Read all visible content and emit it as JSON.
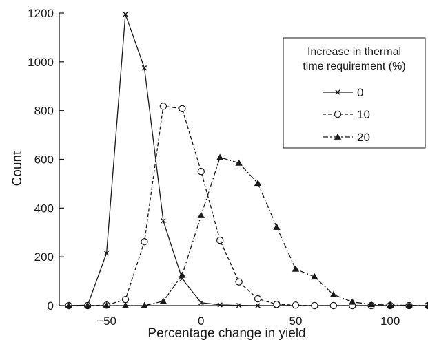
{
  "chart_data": {
    "type": "line",
    "title": "",
    "xlabel": "Percentage change in yield",
    "ylabel": "Count",
    "xlim": [
      -75,
      120
    ],
    "ylim": [
      0,
      1200
    ],
    "x_ticks": [
      -50,
      0,
      50,
      100
    ],
    "y_ticks": [
      0,
      200,
      400,
      600,
      800,
      1000,
      1200
    ],
    "x_tick_labels": [
      "−50",
      "0",
      "50",
      "100"
    ],
    "y_tick_labels": [
      "0",
      "200",
      "400",
      "600",
      "800",
      "1000",
      "1200"
    ],
    "grid": false,
    "legend": {
      "position": "top-right",
      "title_lines": [
        "Increase in thermal",
        "time requirement (%)"
      ]
    },
    "series": [
      {
        "name": "0",
        "line_style": "solid",
        "marker": "x",
        "color": "#1a1a1a",
        "x": [
          -70,
          -60,
          -50,
          -40,
          -30,
          -20,
          -10,
          0,
          10,
          20,
          30,
          40,
          50,
          60,
          70,
          80,
          90,
          100,
          110,
          120
        ],
        "y": [
          0,
          2,
          215,
          1195,
          975,
          348,
          110,
          12,
          3,
          1,
          0,
          0,
          0,
          0,
          0,
          0,
          0,
          0,
          0,
          0
        ]
      },
      {
        "name": "10",
        "line_style": "dashed",
        "marker": "circle-open",
        "color": "#1a1a1a",
        "x": [
          -70,
          -60,
          -50,
          -40,
          -30,
          -20,
          -10,
          0,
          10,
          20,
          30,
          40,
          50,
          60,
          70,
          80,
          90,
          100,
          110,
          120
        ],
        "y": [
          0,
          0,
          2,
          25,
          262,
          818,
          808,
          550,
          268,
          97,
          28,
          5,
          2,
          0,
          0,
          0,
          0,
          0,
          0,
          0
        ]
      },
      {
        "name": "20",
        "line_style": "dashdot",
        "marker": "triangle-filled",
        "color": "#1a1a1a",
        "x": [
          -70,
          -60,
          -50,
          -40,
          -30,
          -20,
          -10,
          0,
          10,
          20,
          30,
          40,
          50,
          60,
          70,
          80,
          90,
          100,
          110,
          120
        ],
        "y": [
          0,
          0,
          0,
          0,
          0,
          18,
          125,
          370,
          608,
          585,
          502,
          322,
          150,
          118,
          45,
          15,
          5,
          2,
          1,
          0
        ]
      }
    ]
  }
}
